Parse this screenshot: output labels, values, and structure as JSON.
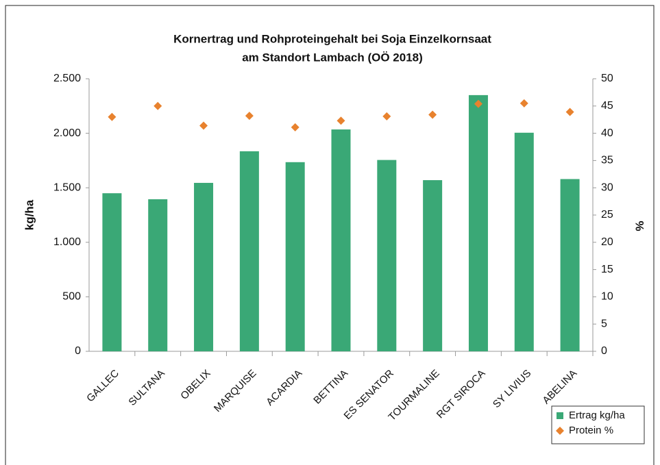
{
  "chart_data": {
    "type": "bar",
    "title": [
      "Kornertrag und Rohproteingehalt bei Soja Einzelkornsaat",
      "am Standort Lambach (OÖ 2018)"
    ],
    "y_label": "kg/ha",
    "y2_label": "%",
    "categories": [
      "GALLEC",
      "SULTANA",
      "OBELIX",
      "MARQUISE",
      "ACARDIA",
      "BETTINA",
      "ES SENATOR",
      "TOURMALINE",
      "RGT SIROCA",
      "SY LIVIUS",
      "ABELINA"
    ],
    "series": [
      {
        "name": "Ertrag kg/ha",
        "type": "bar",
        "color": "#3aa876",
        "values": [
          1450,
          1395,
          1545,
          1835,
          1735,
          2035,
          1755,
          1570,
          2350,
          2005,
          1580
        ]
      },
      {
        "name": "Protein %",
        "type": "scatter",
        "axis": "y2",
        "color": "#e8822e",
        "values": [
          43.0,
          45.0,
          41.4,
          43.2,
          41.1,
          42.3,
          43.1,
          43.4,
          45.4,
          45.5,
          43.9
        ]
      }
    ],
    "ylim": [
      0,
      2500
    ],
    "yticks": [
      0,
      500,
      {
        "value": 1000,
        "label": "1.000"
      },
      {
        "value": 1500,
        "label": "1.500"
      },
      {
        "value": 2000,
        "label": "2.000"
      },
      {
        "value": 2500,
        "label": "2.500"
      }
    ],
    "y2lim": [
      0,
      50
    ],
    "y2ticks": [
      0,
      5,
      10,
      15,
      20,
      25,
      30,
      35,
      40,
      45,
      50
    ],
    "grid": false,
    "legend": "bottom-right"
  }
}
